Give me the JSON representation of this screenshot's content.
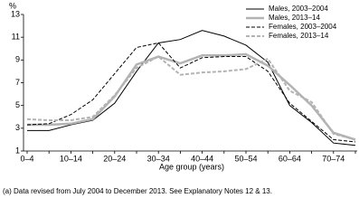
{
  "chart_data": {
    "type": "line",
    "y_label": "%",
    "x_label": "Age group (years)",
    "footnote": "(a) Data revised from July 2004 to December 2013. See Explanatory Notes 12 & 13.",
    "categories": [
      "0–4",
      null,
      "10–14",
      null,
      "20–24",
      null,
      "30–34",
      null,
      "40–44",
      null,
      "50–54",
      null,
      "60–64",
      null,
      "70–74",
      null
    ],
    "ylim": [
      1,
      13
    ],
    "yticks": [
      1,
      3,
      5,
      7,
      9,
      11,
      13
    ],
    "legend": "top-right",
    "series": [
      {
        "name": "Males, 2003–2004",
        "color": "#000000",
        "dash": "solid",
        "width": 1,
        "values": [
          2.8,
          2.8,
          3.3,
          3.7,
          5.2,
          8.0,
          10.5,
          10.8,
          11.6,
          11.1,
          10.3,
          8.8,
          5.0,
          3.5,
          1.7,
          1.5
        ]
      },
      {
        "name": "Males, 2013–14",
        "color": "#b3b3b3",
        "dash": "solid",
        "width": 2.5,
        "values": [
          3.3,
          3.3,
          3.4,
          3.8,
          5.8,
          8.6,
          9.3,
          8.7,
          9.4,
          9.4,
          9.5,
          8.5,
          6.8,
          5.0,
          2.6,
          2.0
        ]
      },
      {
        "name": "Females, 2003–2004",
        "color": "#000000",
        "dash": "dashed",
        "width": 1,
        "values": [
          3.3,
          3.4,
          4.2,
          5.5,
          7.8,
          10.1,
          10.5,
          8.3,
          9.2,
          9.3,
          9.3,
          8.0,
          5.2,
          3.6,
          2.0,
          1.8
        ]
      },
      {
        "name": "Females, 2013–14",
        "color": "#b3b3b3",
        "dash": "dashed",
        "width": 2,
        "values": [
          3.8,
          3.7,
          3.7,
          4.0,
          5.9,
          8.3,
          9.3,
          7.7,
          7.9,
          8.0,
          8.2,
          9.1,
          6.3,
          5.3,
          2.5,
          2.0
        ]
      }
    ]
  }
}
